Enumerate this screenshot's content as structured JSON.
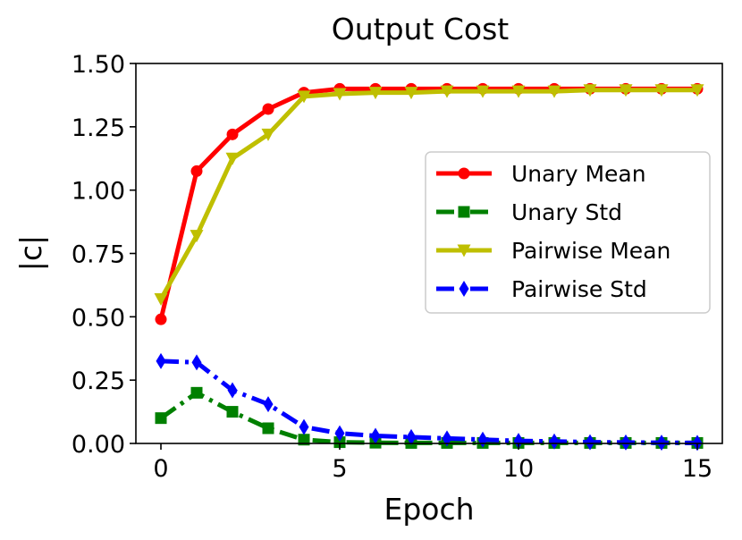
{
  "chart_data": {
    "type": "line",
    "title": "Output Cost",
    "xlabel": "Epoch",
    "ylabel": "|c|",
    "xlim": [
      -0.7,
      15.7
    ],
    "ylim": [
      0.0,
      1.5
    ],
    "x_ticks": [
      0,
      5,
      10,
      15
    ],
    "x_tick_labels": [
      "0",
      "5",
      "10",
      "15"
    ],
    "y_ticks": [
      0.0,
      0.25,
      0.5,
      0.75,
      1.0,
      1.25,
      1.5
    ],
    "y_tick_labels": [
      "0.00",
      "0.25",
      "0.50",
      "0.75",
      "1.00",
      "1.25",
      "1.50"
    ],
    "grid": false,
    "legend_position": "center-right",
    "x": [
      0,
      1,
      2,
      3,
      4,
      5,
      6,
      7,
      8,
      9,
      10,
      11,
      12,
      13,
      14,
      15
    ],
    "series": [
      {
        "name": "Unary Mean",
        "color": "#ff0000",
        "line_style": "solid",
        "marker": "circle",
        "values": [
          0.49,
          1.075,
          1.22,
          1.32,
          1.385,
          1.4,
          1.4,
          1.4,
          1.4,
          1.4,
          1.4,
          1.4,
          1.4,
          1.4,
          1.4,
          1.4
        ]
      },
      {
        "name": "Unary Std",
        "color": "#008000",
        "line_style": "dashdot",
        "marker": "square",
        "values": [
          0.1,
          0.2,
          0.125,
          0.06,
          0.015,
          0.005,
          0.003,
          0.002,
          0.002,
          0.002,
          0.002,
          0.002,
          0.002,
          0.002,
          0.002,
          0.002
        ]
      },
      {
        "name": "Pairwise Mean",
        "color": "#bfbf00",
        "line_style": "solid",
        "marker": "triangle-down",
        "values": [
          0.57,
          0.82,
          1.125,
          1.22,
          1.37,
          1.38,
          1.385,
          1.385,
          1.39,
          1.39,
          1.39,
          1.39,
          1.395,
          1.395,
          1.395,
          1.395
        ]
      },
      {
        "name": "Pairwise Std",
        "color": "#0000ff",
        "line_style": "dashdot",
        "marker": "thin-diamond",
        "values": [
          0.325,
          0.32,
          0.21,
          0.155,
          0.065,
          0.04,
          0.03,
          0.025,
          0.02,
          0.015,
          0.01,
          0.008,
          0.005,
          0.004,
          0.003,
          0.002
        ]
      }
    ]
  }
}
